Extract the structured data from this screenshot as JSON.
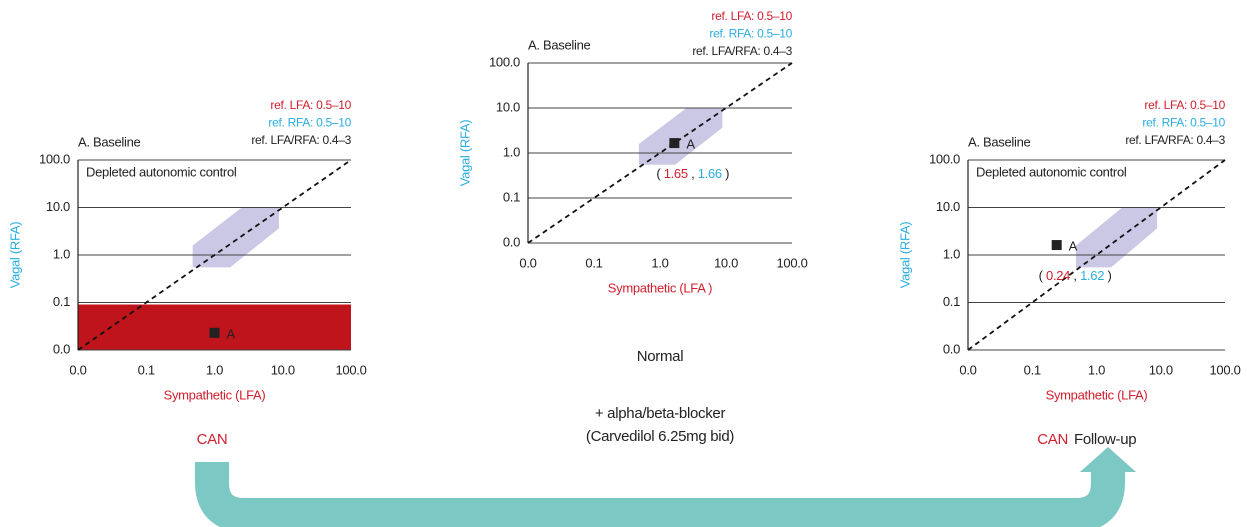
{
  "chart_data": [
    {
      "type": "scatter",
      "title": "A. Baseline",
      "refs": [
        "ref. LFA: 0.5–10",
        "ref. RFA: 0.5–10",
        "ref. LFA/RFA: 0.4–3"
      ],
      "ref_colors": [
        "#d0202e",
        "#2aaee0",
        "#222222"
      ],
      "annotation": "Depleted autonomic control",
      "x_label": "Sympathetic (LFA)",
      "y_label": "Vagal (RFA)",
      "xscale": "log",
      "yscale": "log",
      "xlim": [
        0.01,
        100
      ],
      "ylim": [
        0.01,
        100
      ],
      "xticks": [
        {
          "value": 0.01,
          "label": "0.0"
        },
        0.1,
        {
          "value": 1,
          "label": "1.0"
        },
        {
          "value": 10,
          "label": "10.0"
        },
        {
          "value": 100,
          "label": "100.0"
        }
      ],
      "yticks": [
        {
          "value": 0.01,
          "label": "0.0"
        },
        0.1,
        {
          "value": 1,
          "label": "1.0"
        },
        {
          "value": 10,
          "label": "10.0"
        },
        {
          "value": 100,
          "label": "100.0"
        }
      ],
      "highlight_color": "#c0141c",
      "series": [
        {
          "name": "A",
          "color": "#222222",
          "x": [
            1
          ],
          "values": [
            0.023
          ]
        }
      ]
    },
    {
      "type": "scatter",
      "title": "A. Baseline",
      "refs": [
        "ref. LFA: 0.5–10",
        "ref. RFA: 0.5–10",
        "ref. LFA/RFA: 0.4–3"
      ],
      "ref_colors": [
        "#d0202e",
        "#2aaee0",
        "#222222"
      ],
      "x_label": "Sympathetic (LFA )",
      "y_label": "Vagal (RFA)",
      "xscale": "log",
      "yscale": "log",
      "xlim": [
        0.01,
        100
      ],
      "ylim": [
        0.01,
        100
      ],
      "xticks": [
        {
          "value": 0.01,
          "label": "0.0"
        },
        0.1,
        {
          "value": 1,
          "label": "1.0"
        },
        {
          "value": 10,
          "label": "10.0"
        },
        {
          "value": 100,
          "label": "100.0"
        }
      ],
      "yticks": [
        {
          "value": 0.01,
          "label": "0.0"
        },
        0.1,
        {
          "value": 1,
          "label": "1.0"
        },
        {
          "value": 10,
          "label": "10.0"
        },
        {
          "value": 100,
          "label": "100.0"
        }
      ],
      "value_separators": [
        "( ",
        " , ",
        " )"
      ],
      "series": [
        {
          "name": "A",
          "color": "#222222",
          "x": [
            1.65
          ],
          "values": [
            1.66
          ]
        }
      ]
    },
    {
      "type": "scatter",
      "title": "A. Baseline",
      "refs": [
        "ref. LFA: 0.5–10",
        "ref. RFA: 0.5–10",
        "ref. LFA/RFA: 0.4–3"
      ],
      "ref_colors": [
        "#d0202e",
        "#2aaee0",
        "#222222"
      ],
      "annotation": "Depleted autonomic control",
      "x_label": "Sympathetic (LFA)",
      "y_label": "Vagal (RFA)",
      "xscale": "log",
      "yscale": "log",
      "xlim": [
        0.01,
        100
      ],
      "ylim": [
        0.01,
        100
      ],
      "xticks": [
        {
          "value": 0.01,
          "label": "0.0"
        },
        0.1,
        {
          "value": 1,
          "label": "1.0"
        },
        {
          "value": 10,
          "label": "10.0"
        },
        {
          "value": 100,
          "label": "100.0"
        }
      ],
      "yticks": [
        {
          "value": 0.01,
          "label": "0.0"
        },
        0.1,
        {
          "value": 1,
          "label": "1.0"
        },
        {
          "value": 10,
          "label": "10.0"
        },
        {
          "value": 100,
          "label": "100.0"
        }
      ],
      "value_separators": [
        "( ",
        " , ",
        " )"
      ],
      "series": [
        {
          "name": "A",
          "color": "#222222",
          "x": [
            0.24
          ],
          "values": [
            1.62
          ]
        }
      ]
    }
  ],
  "captions": {
    "left": "CAN",
    "middle": "Normal",
    "treatment": "+ alpha/beta-blocker",
    "dose": "(Carvedilol 6.25mg bid)",
    "right": "CAN",
    "right_suffix": "Follow-up"
  }
}
